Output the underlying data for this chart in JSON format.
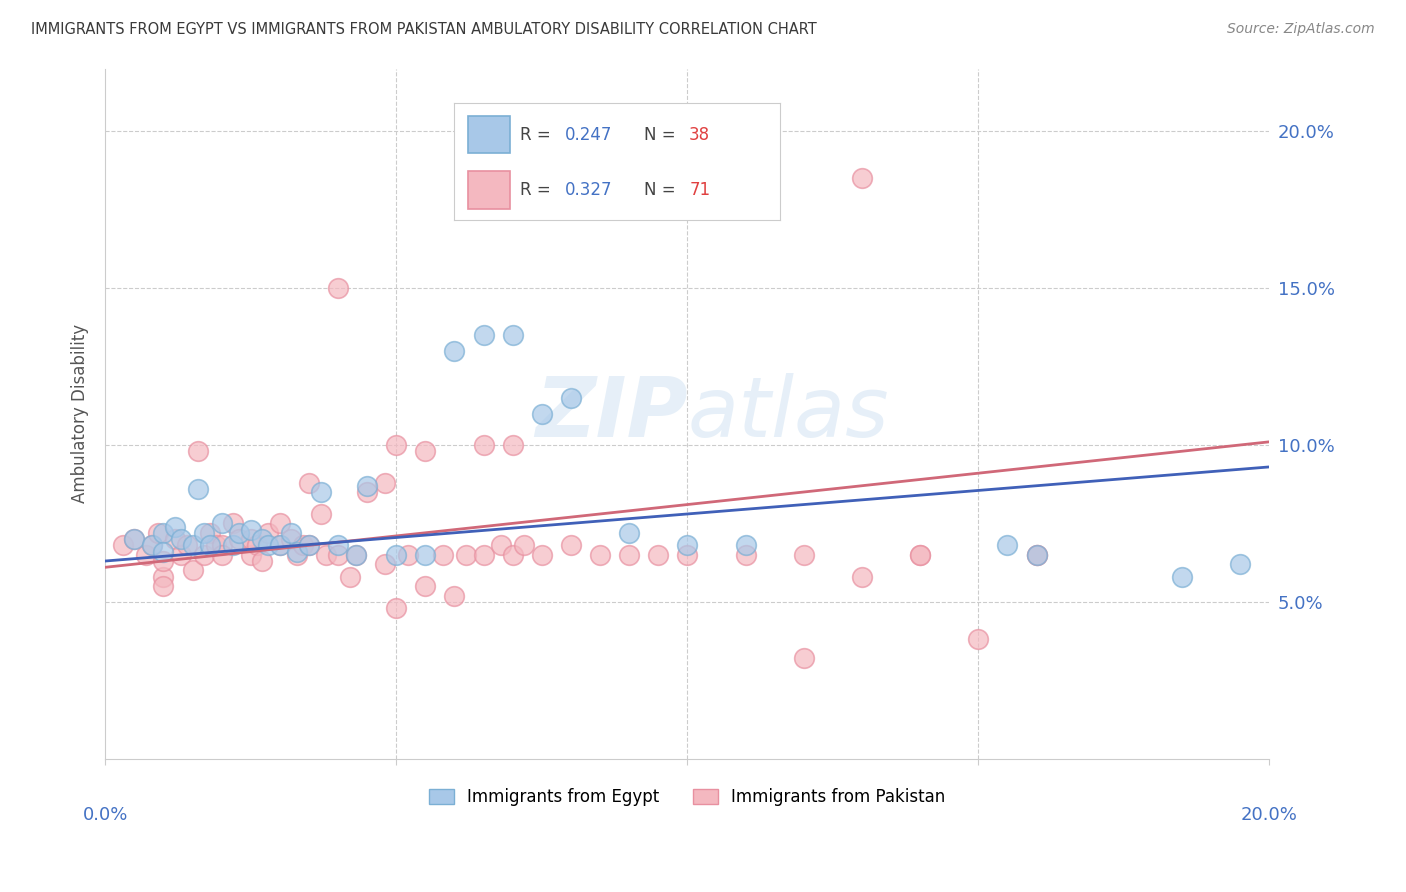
{
  "title": "IMMIGRANTS FROM EGYPT VS IMMIGRANTS FROM PAKISTAN AMBULATORY DISABILITY CORRELATION CHART",
  "source": "Source: ZipAtlas.com",
  "ylabel": "Ambulatory Disability",
  "xlim": [
    0.0,
    0.2
  ],
  "ylim": [
    0.0,
    0.22
  ],
  "yticks": [
    0.05,
    0.1,
    0.15,
    0.2
  ],
  "ytick_labels": [
    "5.0%",
    "10.0%",
    "15.0%",
    "20.0%"
  ],
  "egypt_color_fill": "#a8c8e8",
  "egypt_color_edge": "#7bafd4",
  "pakistan_color_fill": "#f4b8c0",
  "pakistan_color_edge": "#e890a0",
  "egypt_R": "0.247",
  "egypt_N": "38",
  "pakistan_R": "0.327",
  "pakistan_N": "71",
  "egypt_line_color": "#4060b8",
  "pakistan_line_color": "#d06878",
  "egypt_scatter_x": [
    0.005,
    0.008,
    0.01,
    0.01,
    0.012,
    0.013,
    0.015,
    0.016,
    0.017,
    0.018,
    0.02,
    0.022,
    0.023,
    0.025,
    0.027,
    0.028,
    0.03,
    0.032,
    0.033,
    0.035,
    0.037,
    0.04,
    0.043,
    0.045,
    0.05,
    0.055,
    0.06,
    0.065,
    0.07,
    0.075,
    0.08,
    0.09,
    0.1,
    0.11,
    0.155,
    0.16,
    0.185,
    0.195
  ],
  "egypt_scatter_y": [
    0.07,
    0.068,
    0.072,
    0.066,
    0.074,
    0.07,
    0.068,
    0.086,
    0.072,
    0.068,
    0.075,
    0.068,
    0.072,
    0.073,
    0.07,
    0.068,
    0.068,
    0.072,
    0.066,
    0.068,
    0.085,
    0.068,
    0.065,
    0.087,
    0.065,
    0.065,
    0.13,
    0.135,
    0.135,
    0.11,
    0.115,
    0.072,
    0.068,
    0.068,
    0.068,
    0.065,
    0.058,
    0.062
  ],
  "pakistan_scatter_x": [
    0.003,
    0.005,
    0.007,
    0.008,
    0.009,
    0.01,
    0.01,
    0.01,
    0.012,
    0.013,
    0.014,
    0.015,
    0.016,
    0.017,
    0.018,
    0.019,
    0.02,
    0.02,
    0.022,
    0.023,
    0.025,
    0.025,
    0.026,
    0.027,
    0.028,
    0.03,
    0.03,
    0.032,
    0.033,
    0.034,
    0.035,
    0.037,
    0.038,
    0.04,
    0.042,
    0.043,
    0.045,
    0.048,
    0.05,
    0.052,
    0.055,
    0.058,
    0.06,
    0.062,
    0.065,
    0.068,
    0.07,
    0.072,
    0.075,
    0.08,
    0.085,
    0.09,
    0.095,
    0.1,
    0.11,
    0.12,
    0.13,
    0.14,
    0.15,
    0.16,
    0.065,
    0.04,
    0.055,
    0.035,
    0.048,
    0.05,
    0.07,
    0.13,
    0.14,
    0.16,
    0.12
  ],
  "pakistan_scatter_y": [
    0.068,
    0.07,
    0.065,
    0.068,
    0.072,
    0.058,
    0.063,
    0.055,
    0.07,
    0.065,
    0.068,
    0.06,
    0.098,
    0.065,
    0.072,
    0.068,
    0.068,
    0.065,
    0.075,
    0.07,
    0.065,
    0.07,
    0.068,
    0.063,
    0.072,
    0.068,
    0.075,
    0.07,
    0.065,
    0.068,
    0.068,
    0.078,
    0.065,
    0.065,
    0.058,
    0.065,
    0.085,
    0.062,
    0.048,
    0.065,
    0.055,
    0.065,
    0.052,
    0.065,
    0.065,
    0.068,
    0.065,
    0.068,
    0.065,
    0.068,
    0.065,
    0.065,
    0.065,
    0.065,
    0.065,
    0.065,
    0.058,
    0.065,
    0.038,
    0.065,
    0.1,
    0.15,
    0.098,
    0.088,
    0.088,
    0.1,
    0.1,
    0.185,
    0.065,
    0.065,
    0.032
  ],
  "egypt_line_x": [
    0.0,
    0.2
  ],
  "egypt_line_y": [
    0.063,
    0.093
  ],
  "pakistan_line_x": [
    0.0,
    0.2
  ],
  "pakistan_line_y": [
    0.061,
    0.101
  ],
  "background_color": "#ffffff",
  "grid_color": "#cccccc",
  "tick_color": "#4472c4",
  "title_color": "#3a3a3a",
  "source_color": "#888888"
}
